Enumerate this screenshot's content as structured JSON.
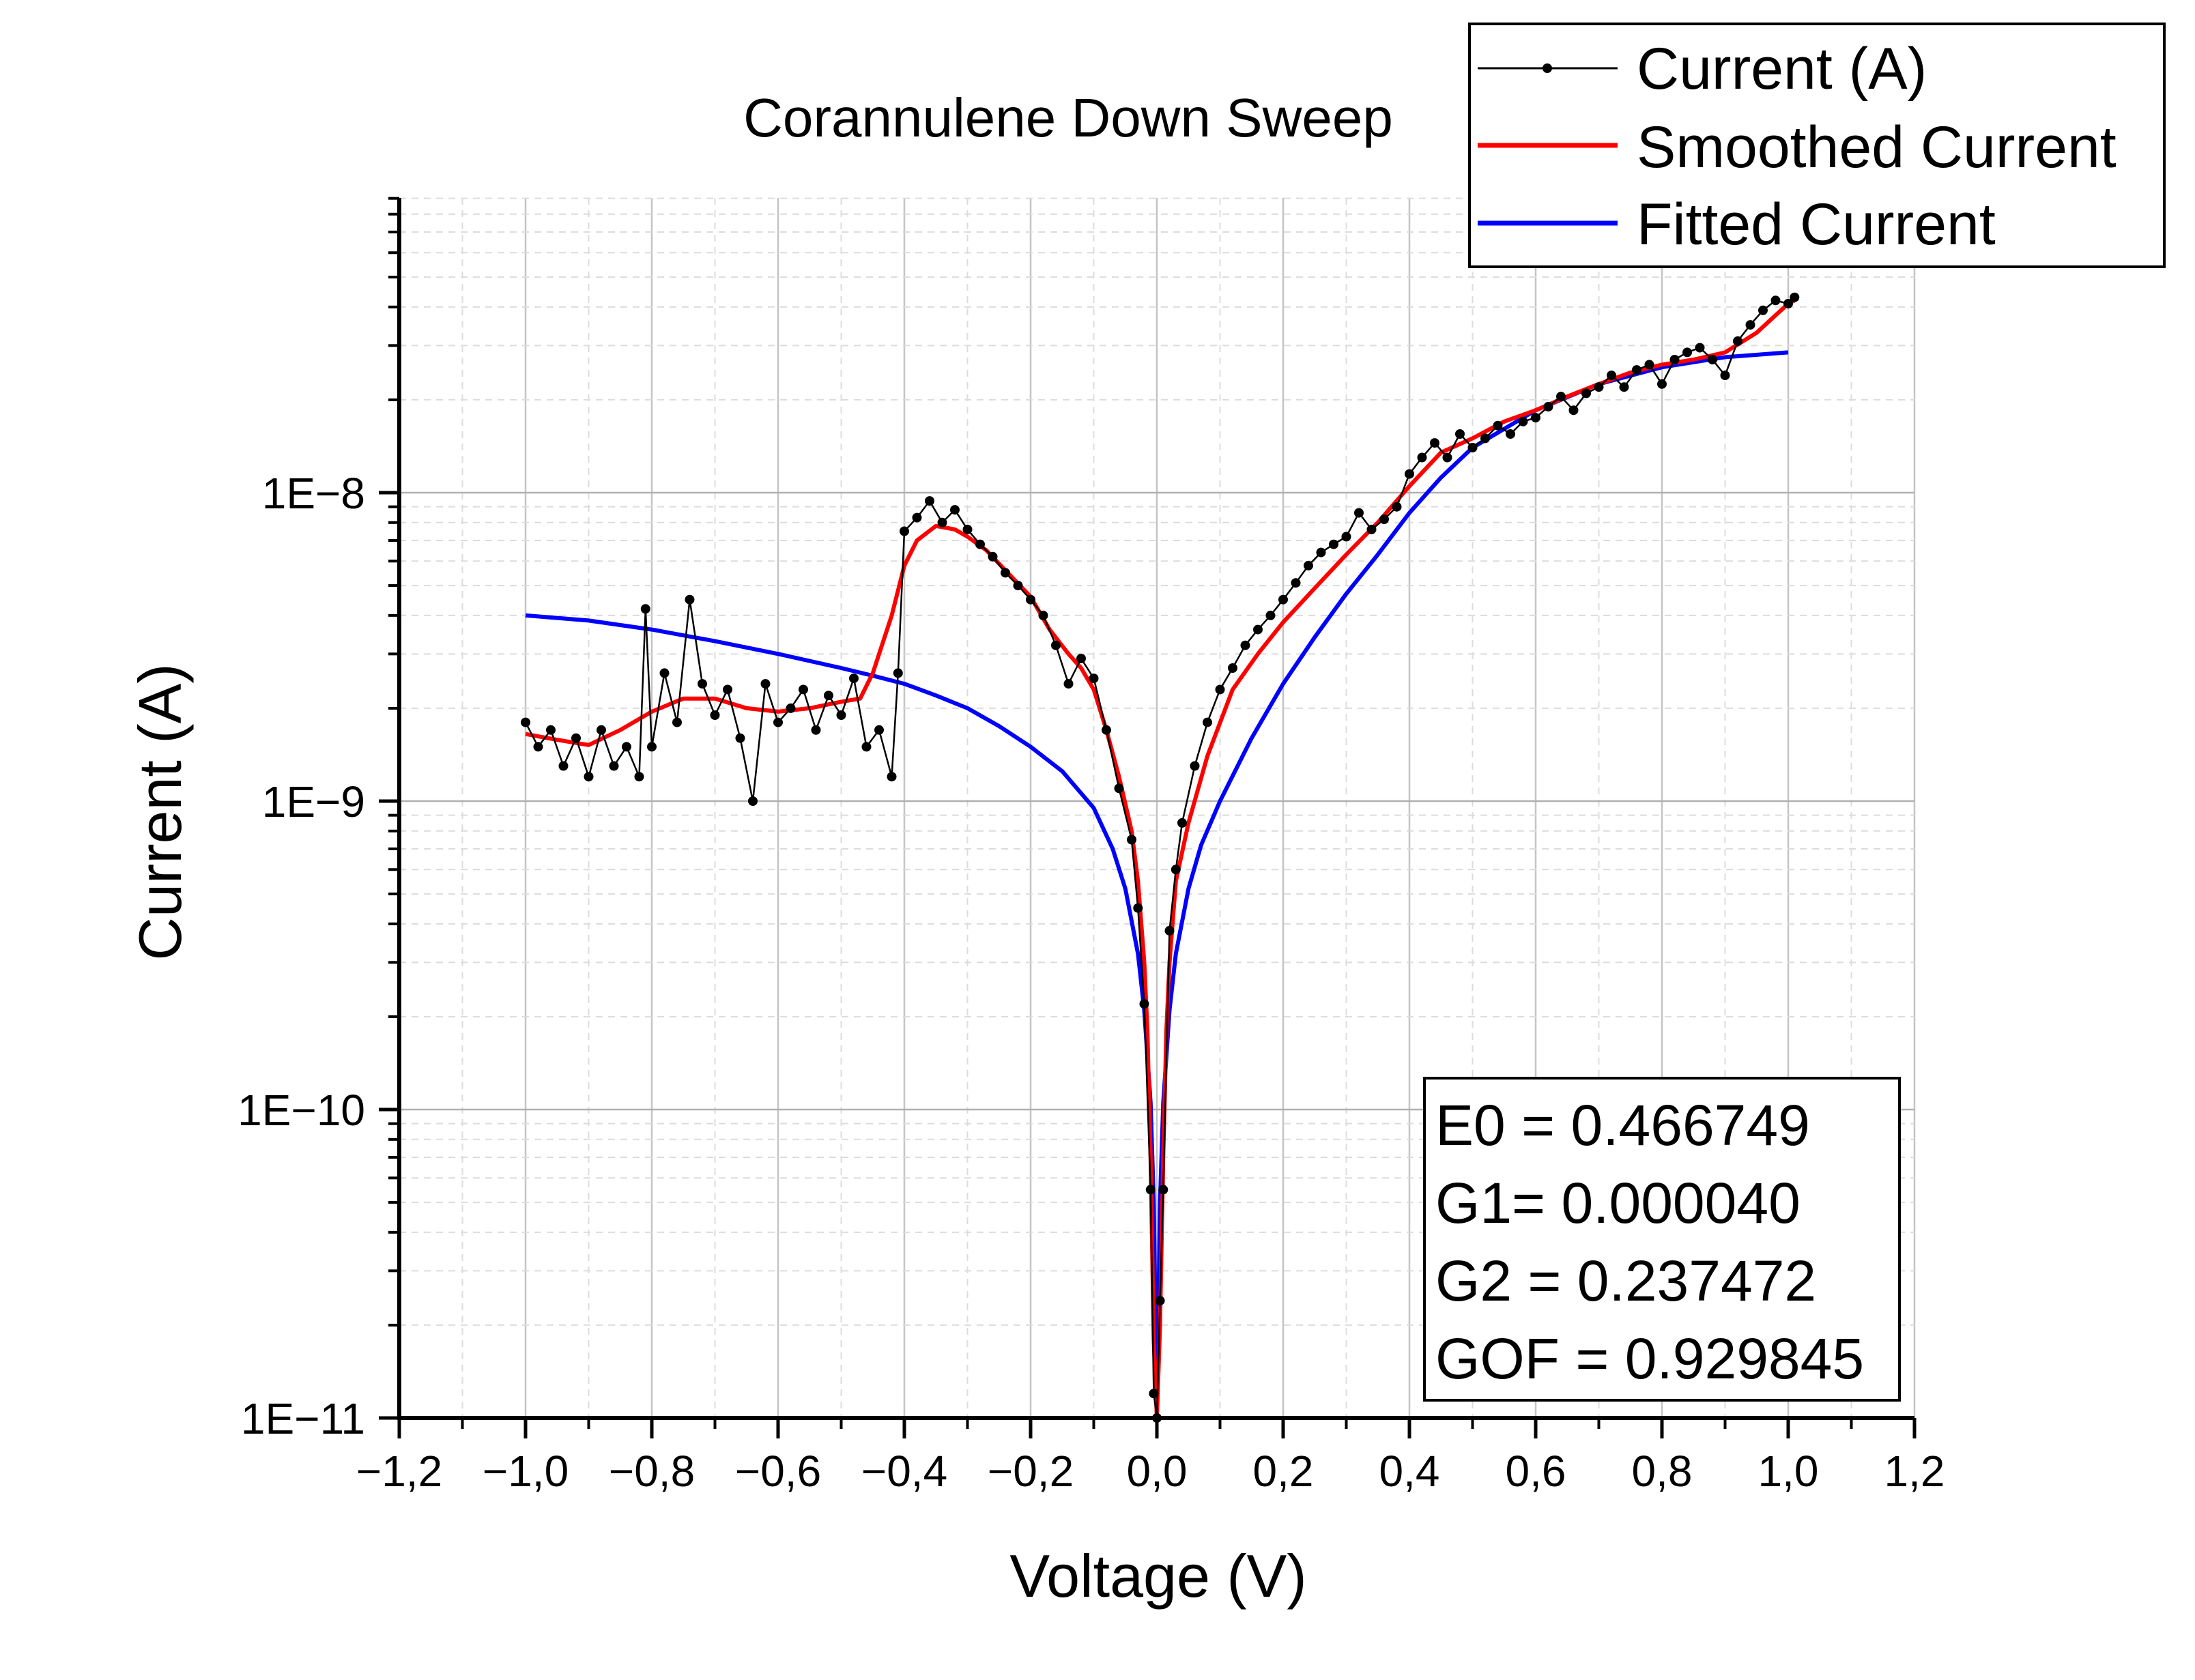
{
  "chart_data": {
    "type": "line",
    "title": "Corannulene Down Sweep",
    "xlabel": "Voltage (V)",
    "ylabel": "Current (A)",
    "xscale": "linear",
    "yscale": "log",
    "xlim": [
      -1.2,
      1.2
    ],
    "ylim": [
      1e-11,
      9e-08
    ],
    "x_ticks": [
      -1.2,
      -1.0,
      -0.8,
      -0.6,
      -0.4,
      -0.2,
      0.0,
      0.2,
      0.4,
      0.6,
      0.8,
      1.0,
      1.2
    ],
    "x_tick_labels": [
      "−1,2",
      "−1,0",
      "−0,8",
      "−0,6",
      "−0,4",
      "−0,2",
      "0,0",
      "0,2",
      "0,4",
      "0,6",
      "0,8",
      "1,0",
      "1,2"
    ],
    "y_ticks": [
      1e-11,
      1e-10,
      1e-09,
      1e-08
    ],
    "y_tick_labels": [
      "1E−11",
      "1E−10",
      "1E−9",
      "1E−8"
    ],
    "grid": true,
    "legend": {
      "position": "top-right",
      "entries": [
        "Current (A)",
        "Smoothed Current",
        "Fitted Current"
      ]
    },
    "fit_parameters": [
      "E0 = 0.466749",
      "G1= 0.000040",
      "G2 = 0.237472",
      "GOF = 0.929845"
    ],
    "colors": {
      "measured": "#000000",
      "smoothed": "#ff0000",
      "fitted": "#0000ff"
    },
    "series": [
      {
        "name": "Current (A)",
        "style": "line-with-markers",
        "x": [
          -1.0,
          -0.98,
          -0.96,
          -0.94,
          -0.92,
          -0.9,
          -0.88,
          -0.86,
          -0.84,
          -0.82,
          -0.81,
          -0.8,
          -0.78,
          -0.76,
          -0.74,
          -0.72,
          -0.7,
          -0.68,
          -0.66,
          -0.64,
          -0.62,
          -0.6,
          -0.58,
          -0.56,
          -0.54,
          -0.52,
          -0.5,
          -0.48,
          -0.46,
          -0.44,
          -0.42,
          -0.41,
          -0.4,
          -0.38,
          -0.36,
          -0.34,
          -0.32,
          -0.3,
          -0.28,
          -0.26,
          -0.24,
          -0.22,
          -0.2,
          -0.18,
          -0.16,
          -0.14,
          -0.12,
          -0.1,
          -0.08,
          -0.06,
          -0.04,
          -0.03,
          -0.02,
          -0.01,
          -0.005,
          0.0,
          0.005,
          0.01,
          0.02,
          0.03,
          0.04,
          0.06,
          0.08,
          0.1,
          0.12,
          0.14,
          0.16,
          0.18,
          0.2,
          0.22,
          0.24,
          0.26,
          0.28,
          0.3,
          0.32,
          0.34,
          0.36,
          0.38,
          0.4,
          0.42,
          0.44,
          0.46,
          0.48,
          0.5,
          0.52,
          0.54,
          0.56,
          0.58,
          0.6,
          0.62,
          0.64,
          0.66,
          0.68,
          0.7,
          0.72,
          0.74,
          0.76,
          0.78,
          0.8,
          0.82,
          0.84,
          0.86,
          0.88,
          0.9,
          0.92,
          0.94,
          0.96,
          0.98,
          1.0,
          1.01
        ],
        "y": [
          1.8e-09,
          1.5e-09,
          1.7e-09,
          1.3e-09,
          1.6e-09,
          1.2e-09,
          1.7e-09,
          1.3e-09,
          1.5e-09,
          1.2e-09,
          4.2e-09,
          1.5e-09,
          2.6e-09,
          1.8e-09,
          4.5e-09,
          2.4e-09,
          1.9e-09,
          2.3e-09,
          1.6e-09,
          1e-09,
          2.4e-09,
          1.8e-09,
          2e-09,
          2.3e-09,
          1.7e-09,
          2.2e-09,
          1.9e-09,
          2.5e-09,
          1.5e-09,
          1.7e-09,
          1.2e-09,
          2.6e-09,
          7.5e-09,
          8.3e-09,
          9.4e-09,
          8e-09,
          8.8e-09,
          7.6e-09,
          6.8e-09,
          6.2e-09,
          5.5e-09,
          5e-09,
          4.5e-09,
          4e-09,
          3.2e-09,
          2.4e-09,
          2.9e-09,
          2.5e-09,
          1.7e-09,
          1.1e-09,
          7.5e-10,
          4.5e-10,
          2.2e-10,
          5.5e-11,
          1.2e-11,
          1e-11,
          2.4e-11,
          5.5e-11,
          3.8e-10,
          6e-10,
          8.5e-10,
          1.3e-09,
          1.8e-09,
          2.3e-09,
          2.7e-09,
          3.2e-09,
          3.6e-09,
          4e-09,
          4.5e-09,
          5.1e-09,
          5.8e-09,
          6.4e-09,
          6.8e-09,
          7.2e-09,
          8.6e-09,
          7.6e-09,
          8.2e-09,
          9e-09,
          1.15e-08,
          1.3e-08,
          1.45e-08,
          1.3e-08,
          1.55e-08,
          1.4e-08,
          1.5e-08,
          1.65e-08,
          1.55e-08,
          1.7e-08,
          1.75e-08,
          1.9e-08,
          2.05e-08,
          1.85e-08,
          2.1e-08,
          2.2e-08,
          2.4e-08,
          2.2e-08,
          2.5e-08,
          2.6e-08,
          2.25e-08,
          2.7e-08,
          2.85e-08,
          2.95e-08,
          2.7e-08,
          2.4e-08,
          3.1e-08,
          3.5e-08,
          3.9e-08,
          4.2e-08,
          4.1e-08,
          4.3e-08
        ]
      },
      {
        "name": "Smoothed Current",
        "style": "line",
        "x": [
          -1.0,
          -0.95,
          -0.9,
          -0.85,
          -0.8,
          -0.75,
          -0.7,
          -0.65,
          -0.6,
          -0.55,
          -0.5,
          -0.47,
          -0.45,
          -0.42,
          -0.4,
          -0.38,
          -0.35,
          -0.32,
          -0.3,
          -0.27,
          -0.24,
          -0.2,
          -0.17,
          -0.14,
          -0.12,
          -0.1,
          -0.08,
          -0.06,
          -0.04,
          -0.03,
          -0.02,
          -0.015,
          -0.01,
          -0.005,
          0.0,
          0.005,
          0.01,
          0.015,
          0.02,
          0.03,
          0.05,
          0.08,
          0.12,
          0.16,
          0.2,
          0.25,
          0.3,
          0.35,
          0.4,
          0.45,
          0.5,
          0.55,
          0.6,
          0.65,
          0.7,
          0.75,
          0.8,
          0.85,
          0.9,
          0.95,
          1.0,
          1.01
        ],
        "y": [
          1.65e-09,
          1.58e-09,
          1.52e-09,
          1.7e-09,
          1.95e-09,
          2.15e-09,
          2.15e-09,
          2e-09,
          1.95e-09,
          2e-09,
          2.1e-09,
          2.15e-09,
          2.6e-09,
          4e-09,
          5.8e-09,
          7e-09,
          7.8e-09,
          7.6e-09,
          7.2e-09,
          6.5e-09,
          5.6e-09,
          4.6e-09,
          3.6e-09,
          3e-09,
          2.7e-09,
          2.3e-09,
          1.7e-09,
          1.2e-09,
          8e-10,
          5.5e-10,
          3e-10,
          1.8e-10,
          7e-11,
          1.8e-11,
          1e-11,
          2e-11,
          7e-11,
          1.8e-10,
          3e-10,
          5.5e-10,
          8.5e-10,
          1.4e-09,
          2.3e-09,
          3e-09,
          3.8e-09,
          4.9e-09,
          6.3e-09,
          8e-09,
          1.05e-08,
          1.35e-08,
          1.5e-08,
          1.7e-08,
          1.85e-08,
          2.05e-08,
          2.25e-08,
          2.45e-08,
          2.6e-08,
          2.7e-08,
          2.85e-08,
          3.3e-08,
          4.1e-08,
          4.2e-08
        ]
      },
      {
        "name": "Fitted Current",
        "style": "line",
        "x": [
          -1.0,
          -0.9,
          -0.8,
          -0.7,
          -0.6,
          -0.5,
          -0.45,
          -0.4,
          -0.35,
          -0.3,
          -0.25,
          -0.2,
          -0.15,
          -0.1,
          -0.07,
          -0.05,
          -0.03,
          -0.02,
          -0.01,
          -0.005,
          0.0,
          0.005,
          0.01,
          0.02,
          0.03,
          0.05,
          0.07,
          0.1,
          0.15,
          0.2,
          0.25,
          0.3,
          0.35,
          0.4,
          0.45,
          0.5,
          0.6,
          0.7,
          0.8,
          0.9,
          1.0
        ],
        "y": [
          4e-09,
          3.85e-09,
          3.6e-09,
          3.3e-09,
          3e-09,
          2.7e-09,
          2.55e-09,
          2.4e-09,
          2.2e-09,
          2e-09,
          1.75e-09,
          1.5e-09,
          1.25e-09,
          9.5e-10,
          7e-10,
          5.2e-10,
          3.2e-10,
          2.1e-10,
          1.05e-10,
          5e-11,
          1e-11,
          5e-11,
          1.05e-10,
          2.1e-10,
          3.2e-10,
          5.2e-10,
          7.2e-10,
          1e-09,
          1.6e-09,
          2.4e-09,
          3.4e-09,
          4.7e-09,
          6.3e-09,
          8.6e-09,
          1.12e-08,
          1.4e-08,
          1.85e-08,
          2.25e-08,
          2.55e-08,
          2.75e-08,
          2.85e-08
        ]
      }
    ]
  }
}
